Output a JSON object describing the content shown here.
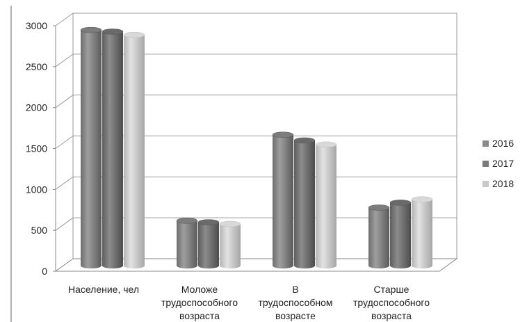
{
  "chart_data": {
    "type": "bar",
    "variant": "3d-cylinder",
    "categories": [
      [
        "Население, чел"
      ],
      [
        "Моложе",
        "трудоспособного",
        "возраста"
      ],
      [
        "В",
        "трудоспособном",
        "возрасте"
      ],
      [
        "Старше",
        "трудоспособного",
        "возраста"
      ]
    ],
    "series": [
      {
        "name": "2016",
        "color": "#8a8a8a",
        "values": [
          2880,
          550,
          1600,
          710
        ]
      },
      {
        "name": "2017",
        "color": "#7b7b7b",
        "values": [
          2860,
          530,
          1530,
          770
        ]
      },
      {
        "name": "2018",
        "color": "#c8c8c8",
        "values": [
          2820,
          510,
          1480,
          810
        ]
      }
    ],
    "yticks": [
      0,
      500,
      1000,
      1500,
      2000,
      2500,
      3000
    ],
    "ylim": [
      0,
      3000
    ],
    "grid": true,
    "legend_position": "right"
  }
}
